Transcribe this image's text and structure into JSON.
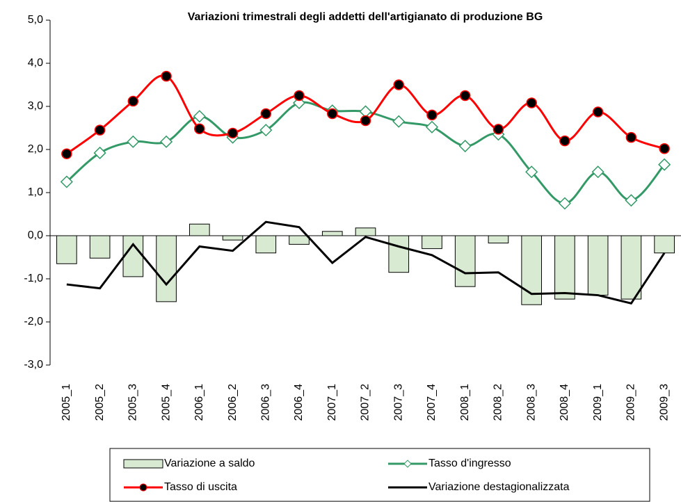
{
  "chart_data": {
    "type": "combo",
    "title": "Variazioni trimestrali degli addetti dell'artigianato di produzione BG",
    "categories": [
      "2005_1",
      "2005_2",
      "2005_3",
      "2005_4",
      "2006_1",
      "2006_2",
      "2006_3",
      "2006_4",
      "2007_1",
      "2007_2",
      "2007_3",
      "2007_4",
      "2008_1",
      "2008_2",
      "2008_3",
      "2008_4",
      "2009_1",
      "2009_2",
      "2009_3"
    ],
    "series": [
      {
        "name": "Variazione a saldo",
        "type": "bar",
        "color": "#d9ead3",
        "values": [
          -0.65,
          -0.52,
          -0.95,
          -1.53,
          0.27,
          -0.1,
          -0.4,
          -0.2,
          0.1,
          0.18,
          -0.85,
          -0.3,
          -1.18,
          -0.17,
          -1.6,
          -1.47,
          -1.38,
          -1.47,
          -0.4
        ]
      },
      {
        "name": "Tasso d'ingresso",
        "type": "line",
        "color": "#339966",
        "marker": "diamond",
        "smooth": true,
        "values": [
          1.25,
          1.92,
          2.18,
          2.18,
          2.77,
          2.28,
          2.45,
          3.08,
          2.9,
          2.88,
          2.65,
          2.52,
          2.08,
          2.35,
          1.48,
          0.75,
          1.48,
          0.82,
          1.65
        ]
      },
      {
        "name": "Tasso di uscita",
        "type": "line",
        "color": "#ff0000",
        "marker": "circle",
        "smooth": true,
        "values": [
          1.9,
          2.45,
          3.12,
          3.7,
          2.48,
          2.38,
          2.83,
          3.25,
          2.83,
          2.67,
          3.5,
          2.8,
          3.25,
          2.47,
          3.08,
          2.2,
          2.87,
          2.28,
          2.02
        ]
      },
      {
        "name": "Variazione destagionalizzata",
        "type": "line",
        "color": "#000000",
        "marker": "none",
        "smooth": false,
        "values": [
          -1.13,
          -1.22,
          -0.2,
          -1.13,
          -0.25,
          -0.35,
          0.32,
          0.2,
          -0.63,
          -0.03,
          -0.25,
          -0.45,
          -0.87,
          -0.85,
          -1.35,
          -1.33,
          -1.38,
          -1.57,
          -0.4
        ]
      }
    ],
    "ylim": [
      -3,
      5
    ],
    "yticks": [
      {
        "value": -3,
        "label": "-3,0"
      },
      {
        "value": -2,
        "label": "-2,0"
      },
      {
        "value": -1,
        "label": "-1,0"
      },
      {
        "value": 0,
        "label": "0,0"
      },
      {
        "value": 1,
        "label": "1,0"
      },
      {
        "value": 2,
        "label": "2,0"
      },
      {
        "value": 3,
        "label": "3,0"
      },
      {
        "value": 4,
        "label": "4,0"
      },
      {
        "value": 5,
        "label": "5,0"
      }
    ],
    "grid": false,
    "legend": "bottom"
  }
}
